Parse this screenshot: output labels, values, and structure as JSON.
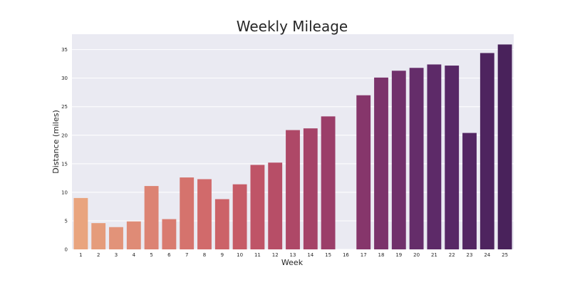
{
  "chart_data": {
    "type": "bar",
    "title": "Weekly Mileage",
    "xlabel": "Week",
    "ylabel": "Distance (miles)",
    "categories": [
      "1",
      "2",
      "3",
      "4",
      "5",
      "6",
      "7",
      "8",
      "9",
      "10",
      "11",
      "12",
      "13",
      "14",
      "15",
      "16",
      "17",
      "18",
      "19",
      "20",
      "21",
      "22",
      "23",
      "24",
      "25"
    ],
    "values": [
      9.0,
      4.6,
      3.9,
      4.9,
      11.1,
      5.3,
      12.6,
      12.3,
      8.8,
      11.4,
      14.8,
      15.2,
      20.9,
      21.2,
      23.3,
      0,
      27.0,
      30.1,
      31.3,
      31.8,
      32.4,
      32.2,
      20.4,
      34.4,
      35.9
    ],
    "yticks": [
      0,
      5,
      10,
      15,
      20,
      25,
      30,
      35
    ],
    "ylim": [
      0,
      37.7
    ],
    "grid": true,
    "colors": [
      "#e9a47e",
      "#e59c7b",
      "#e29379",
      "#df8b76",
      "#dc8373",
      "#d97b70",
      "#d5736d",
      "#d16a6b",
      "#cc6268",
      "#c65b67",
      "#bf5467",
      "#b74e67",
      "#ae4867",
      "#a54368",
      "#9b3e69",
      "#913a6a",
      "#86366b",
      "#7b336b",
      "#70306b",
      "#652d6a",
      "#5d2a68",
      "#582866",
      "#532663",
      "#4e245f",
      "#49225b"
    ],
    "background": "#eaeaf2"
  }
}
